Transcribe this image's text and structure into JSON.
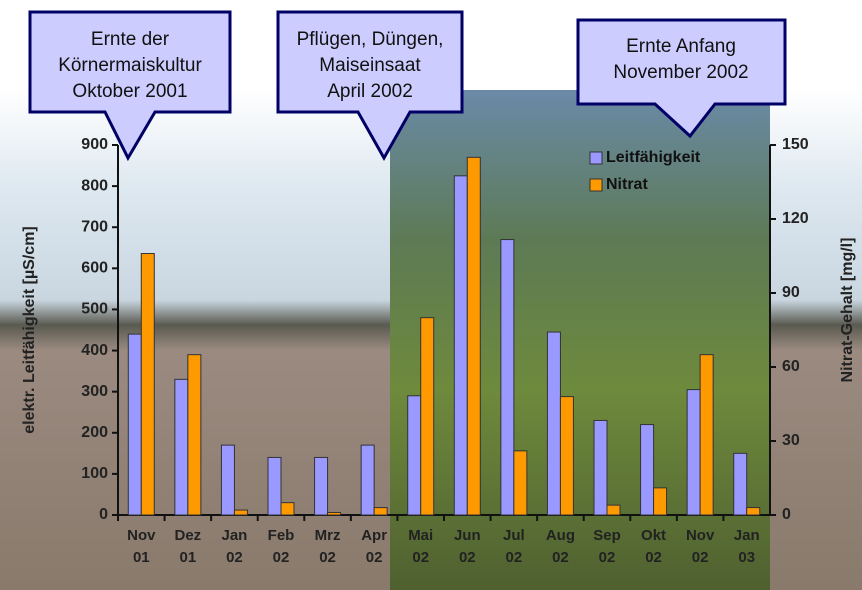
{
  "chart_data": {
    "type": "bar",
    "annotations": [
      [
        "Ernte der",
        "Körnermaiskultur",
        "Oktober 2001"
      ],
      [
        "Pflügen, Düngen,",
        "Maiseinsaat",
        "April 2002"
      ],
      [
        "Ernte Anfang",
        "November 2002"
      ]
    ],
    "categories": [
      "Nov 01",
      "Dez 01",
      "Jan 02",
      "Feb 02",
      "Mrz 02",
      "Apr 02",
      "Mai 02",
      "Jun 02",
      "Jul 02",
      "Aug 02",
      "Sep 02",
      "Okt 02",
      "Nov 02",
      "Jan 03"
    ],
    "series": [
      {
        "name": "Leitfähigkeit",
        "color": "#9999ff",
        "values": [
          440,
          330,
          170,
          140,
          140,
          170,
          290,
          825,
          670,
          445,
          230,
          220,
          305,
          150
        ]
      },
      {
        "name": "Nitrat",
        "color": "#ff9900",
        "axis": "y2",
        "values": [
          106,
          65,
          2,
          5,
          1,
          3,
          80,
          145,
          26,
          48,
          4,
          11,
          65,
          3
        ]
      }
    ],
    "ylabel": "elektr. Leitfähigkeit [µS/cm]",
    "y2label": "Nitrat-Gehalt [mg/l]",
    "ylim": [
      0,
      900
    ],
    "yticks": [
      0,
      100,
      200,
      300,
      400,
      500,
      600,
      700,
      800,
      900
    ],
    "y2lim": [
      0,
      150
    ],
    "y2ticks": [
      0,
      30,
      60,
      90,
      120,
      150
    ],
    "legend": "upper right"
  }
}
